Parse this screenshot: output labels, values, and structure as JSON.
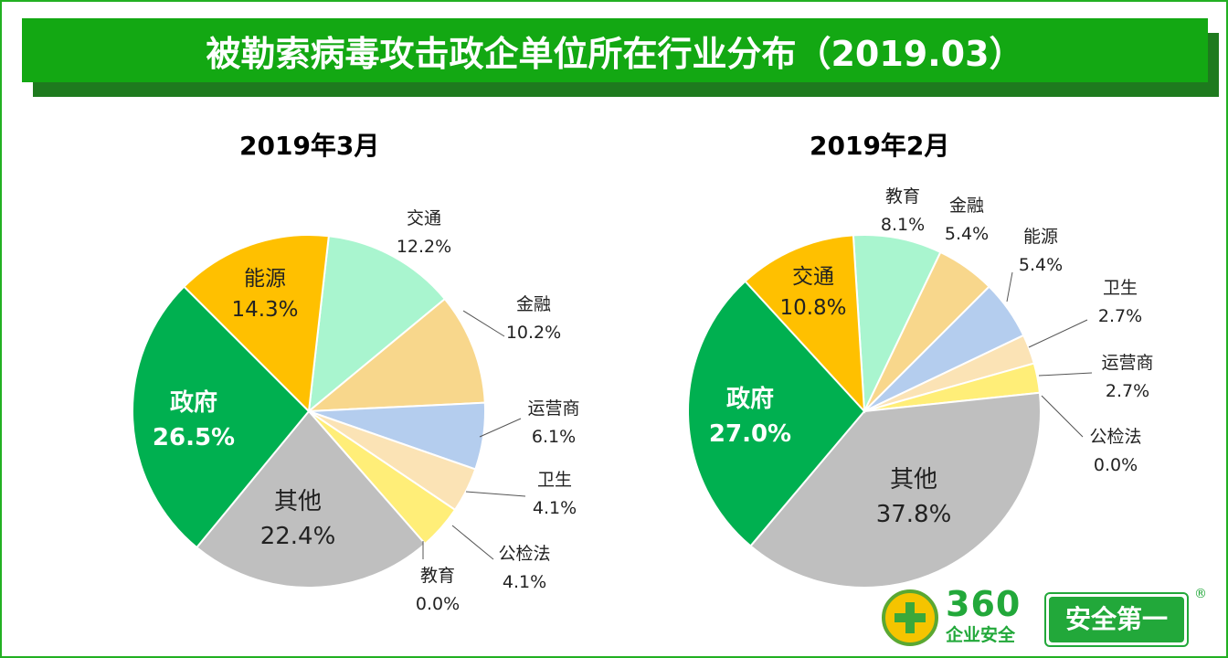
{
  "title": "被勒索病毒攻击政企单位所在行业分布（2019.03）",
  "chart_data": [
    {
      "type": "pie",
      "title": "2019年3月",
      "unit": "%",
      "slices": [
        {
          "label": "交通",
          "value": 12.2,
          "color": "#a9f5cf"
        },
        {
          "label": "金融",
          "value": 10.2,
          "color": "#f8d78c"
        },
        {
          "label": "运营商",
          "value": 6.1,
          "color": "#b4cdee"
        },
        {
          "label": "卫生",
          "value": 4.1,
          "color": "#fbe3b5"
        },
        {
          "label": "公检法",
          "value": 4.1,
          "color": "#ffee78"
        },
        {
          "label": "教育",
          "value": 0.0,
          "color": "#ffc000"
        },
        {
          "label": "其他",
          "value": 22.4,
          "color": "#bfbfbf"
        },
        {
          "label": "政府",
          "value": 26.5,
          "color": "#00b050"
        },
        {
          "label": "能源",
          "value": 14.3,
          "color": "#ffc000"
        }
      ],
      "value_labels": [
        "12.2%",
        "10.2%",
        "6.1%",
        "4.1%",
        "4.1%",
        "0.0%",
        "22.4%",
        "26.5%",
        "14.3%"
      ]
    },
    {
      "type": "pie",
      "title": "2019年2月",
      "unit": "%",
      "slices": [
        {
          "label": "教育",
          "value": 8.1,
          "color": "#a9f5cf"
        },
        {
          "label": "金融",
          "value": 5.4,
          "color": "#f8d78c"
        },
        {
          "label": "能源",
          "value": 5.4,
          "color": "#b4cdee"
        },
        {
          "label": "卫生",
          "value": 2.7,
          "color": "#fbe3b5"
        },
        {
          "label": "运营商",
          "value": 2.7,
          "color": "#ffee78"
        },
        {
          "label": "公检法",
          "value": 0.0,
          "color": "#ffc000"
        },
        {
          "label": "其他",
          "value": 37.8,
          "color": "#bfbfbf"
        },
        {
          "label": "政府",
          "value": 27.0,
          "color": "#00b050"
        },
        {
          "label": "交通",
          "value": 10.8,
          "color": "#ffc000"
        }
      ],
      "value_labels": [
        "8.1%",
        "5.4%",
        "5.4%",
        "2.7%",
        "2.7%",
        "0.0%",
        "37.8%",
        "27.0%",
        "10.8%"
      ]
    }
  ],
  "logo": {
    "number": "360",
    "subtitle": "企业安全",
    "slogan": "安全第一",
    "registered": "®"
  }
}
